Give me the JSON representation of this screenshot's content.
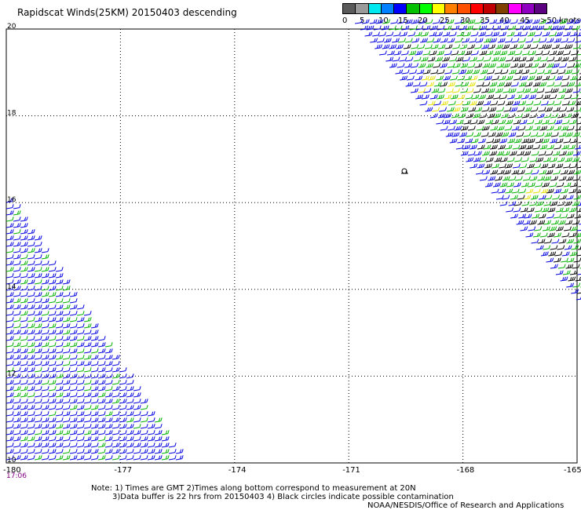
{
  "title": "Rapidscat Winds(25KM) 20150403 descending",
  "legend": {
    "swatches": [
      "#5a5a5a",
      "#9a9a9a",
      "#00e8f0",
      "#0080ff",
      "#0000ff",
      "#00c000",
      "#00ff00",
      "#ffff00",
      "#ff8000",
      "#ff5000",
      "#ff0000",
      "#c00000",
      "#804000",
      "#ff00ff",
      "#9000c0",
      "#5a0080"
    ],
    "labels": [
      {
        "text": "0",
        "x": 0
      },
      {
        "text": "5",
        "x": 22
      },
      {
        "text": "10",
        "x": 46
      },
      {
        "text": "15",
        "x": 71
      },
      {
        "text": "20",
        "x": 96
      },
      {
        "text": "25",
        "x": 124
      },
      {
        "text": "30",
        "x": 150
      },
      {
        "text": "35",
        "x": 175
      },
      {
        "text": "40",
        "x": 200
      },
      {
        "text": "45",
        "x": 226
      },
      {
        "text": ">50 knots",
        "x": 252
      }
    ]
  },
  "map": {
    "lon_range": [
      -180,
      -165
    ],
    "lat_range": [
      10,
      20
    ],
    "lat_labels": [
      "20",
      "18",
      "16",
      "14",
      "12",
      "10"
    ],
    "lon_labels": [
      "-180",
      "-177",
      "-174",
      "-171",
      "-168",
      "-165"
    ],
    "time_label": "17:06",
    "time_color": "#800080",
    "barb_colors": {
      "calm_blue": "#0000e0",
      "mid_green": "#00b000",
      "dark": "#000000",
      "yellow": "#e8e000"
    },
    "contamination_marker": "contamination-circle"
  },
  "notes": {
    "line1": "Note: 1) Times are GMT 2)Times along bottom correspond to measurement at 20N",
    "line2": "3)Data buffer is 22 hrs from 20150403 4) Black circles indicate possible contamination",
    "line3": "NOAA/NESDIS/Office of Research and Applications"
  }
}
